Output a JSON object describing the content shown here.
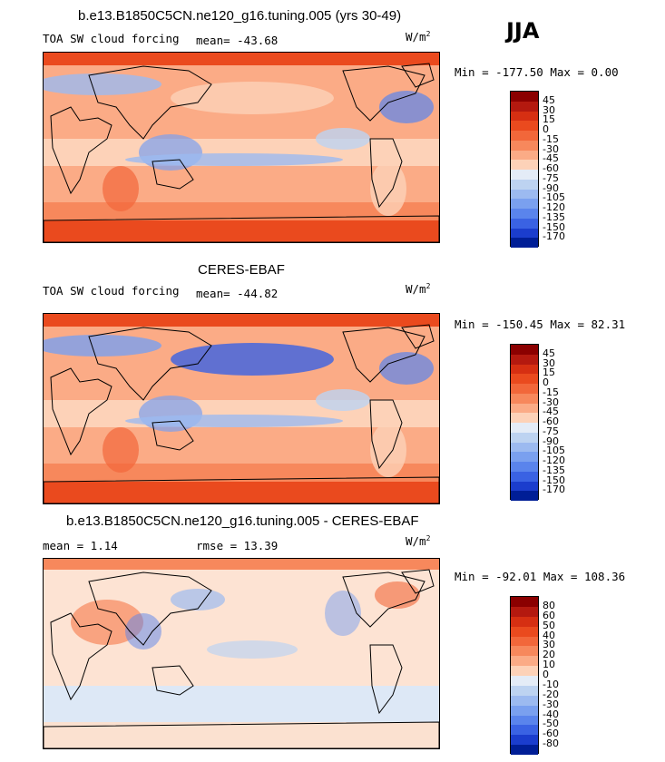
{
  "season": "JJA",
  "units_base": "W/m",
  "units_exp": "2",
  "panels": [
    {
      "title": "b.e13.B1850C5CN.ne120_g16.tuning.005 (yrs 30-49)",
      "left_label": "TOA SW cloud forcing",
      "stat_text": "mean=  -43.68",
      "minmax": "Min = -177.50 Max =    0.00",
      "colorbar_labels": [
        "45",
        "30",
        "15",
        "0",
        "-15",
        "-30",
        "-45",
        "-60",
        "-75",
        "-90",
        "-105",
        "-120",
        "-135",
        "-150",
        "-170"
      ]
    },
    {
      "title": "CERES-EBAF",
      "left_label": "TOA SW cloud forcing",
      "stat_text": "mean=  -44.82",
      "minmax": "Min = -150.45 Max =  82.31",
      "colorbar_labels": [
        "45",
        "30",
        "15",
        "0",
        "-15",
        "-30",
        "-45",
        "-60",
        "-75",
        "-90",
        "-105",
        "-120",
        "-135",
        "-150",
        "-170"
      ]
    },
    {
      "title": "b.e13.B1850C5CN.ne120_g16.tuning.005 - CERES-EBAF",
      "left_label": "mean =   1.14",
      "stat_text": "rmse =  13.39",
      "minmax": "Min = -92.01 Max = 108.36",
      "colorbar_labels": [
        "80",
        "60",
        "50",
        "40",
        "30",
        "20",
        "10",
        "0",
        "-10",
        "-20",
        "-30",
        "-40",
        "-50",
        "-60",
        "-80"
      ]
    }
  ],
  "colors": {
    "scale": [
      "#8b0000",
      "#b4190f",
      "#d62f12",
      "#ea4a1e",
      "#f2673a",
      "#f7885c",
      "#fbab86",
      "#fdd2b8",
      "#e4ecf7",
      "#bdd3f1",
      "#9cbaf0",
      "#7aa0ef",
      "#5a84ec",
      "#3a62e3",
      "#1b3dcd",
      "#001e96"
    ]
  }
}
